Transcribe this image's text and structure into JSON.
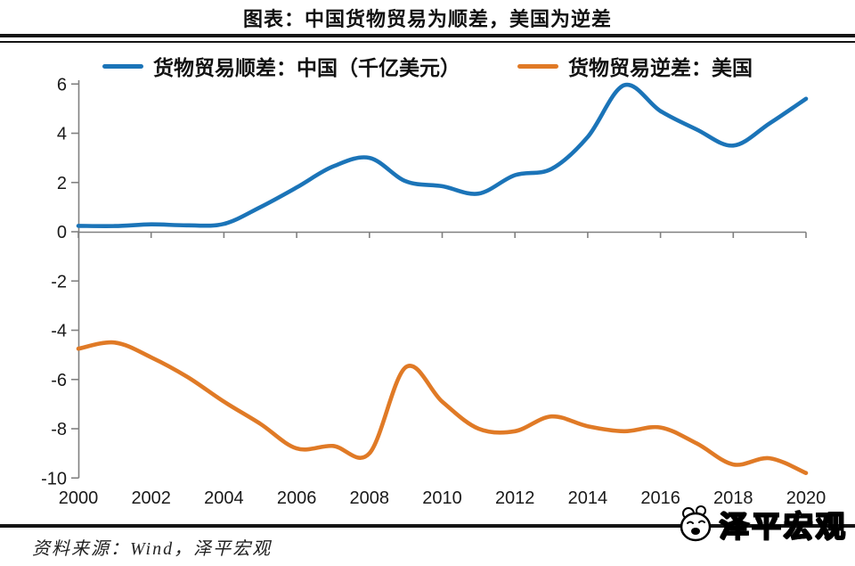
{
  "title": "图表：中国货物贸易为顺差，美国为逆差",
  "legend": [
    {
      "label": "货物贸易顺差：中国（千亿美元）",
      "color": "#1b74b8"
    },
    {
      "label": "货物贸易逆差：美国",
      "color": "#e07a26"
    }
  ],
  "footer": {
    "source": "资料来源：Wind，泽平宏观",
    "logo_text": "泽平宏观"
  },
  "chart_data": {
    "type": "line",
    "title": "图表：中国货物贸易为顺差，美国为逆差",
    "xlabel": "",
    "ylabel": "",
    "x": [
      2000,
      2001,
      2002,
      2003,
      2004,
      2005,
      2006,
      2007,
      2008,
      2009,
      2010,
      2011,
      2012,
      2013,
      2014,
      2015,
      2016,
      2017,
      2018,
      2019,
      2020
    ],
    "series": [
      {
        "name": "货物贸易顺差：中国（千亿美元）",
        "color": "#1b74b8",
        "values": [
          0.24,
          0.23,
          0.3,
          0.26,
          0.32,
          1.0,
          1.8,
          2.65,
          3.0,
          2.05,
          1.85,
          1.55,
          2.3,
          2.55,
          3.85,
          5.95,
          4.9,
          4.15,
          3.5,
          4.4,
          5.4
        ]
      },
      {
        "name": "货物贸易逆差：美国",
        "color": "#e07a26",
        "values": [
          -4.75,
          -4.5,
          -5.1,
          -5.9,
          -6.9,
          -7.8,
          -8.8,
          -8.7,
          -9.0,
          -5.5,
          -6.9,
          -8.0,
          -8.1,
          -7.5,
          -7.9,
          -8.1,
          -7.95,
          -8.6,
          -9.45,
          -9.2,
          -9.8
        ]
      }
    ],
    "xticks": [
      2000,
      2002,
      2004,
      2006,
      2008,
      2010,
      2012,
      2014,
      2016,
      2018,
      2020
    ],
    "yticks": [
      6,
      4,
      2,
      0,
      -2,
      -4,
      -6,
      -8,
      -10
    ],
    "ylim": [
      -10,
      6
    ],
    "xlim": [
      2000,
      2020
    ],
    "grid": false,
    "zero_axis": true,
    "axis_color": "#808080",
    "legend_position": "top",
    "line_smoothing": true
  }
}
